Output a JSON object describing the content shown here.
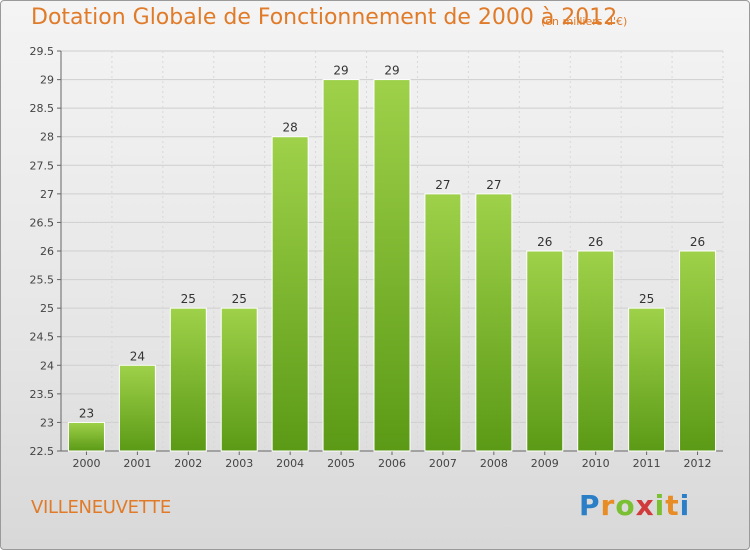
{
  "header": {
    "title": "Dotation Globale de Fonctionnement de 2000 à 2012",
    "subtitle": "(en milliers d'€)"
  },
  "footer": {
    "city": "VILLENEUVETTE",
    "logo_letters": [
      "P",
      "r",
      "o",
      "x",
      "i",
      "t",
      "i"
    ]
  },
  "colors": {
    "accent": "#e07b29",
    "bar_top": "#9fd14a",
    "bar_bottom": "#5b9a16"
  },
  "chart_data": {
    "type": "bar",
    "title": "Dotation Globale de Fonctionnement de 2000 à 2012",
    "subtitle": "(en milliers d'€)",
    "categories": [
      "2000",
      "2001",
      "2002",
      "2003",
      "2004",
      "2005",
      "2006",
      "2007",
      "2008",
      "2009",
      "2010",
      "2011",
      "2012"
    ],
    "values": [
      23,
      24,
      25,
      25,
      28,
      29,
      29,
      27,
      27,
      26,
      26,
      25,
      26
    ],
    "ylim": [
      22.5,
      29.5
    ],
    "yticks": [
      "22.5",
      "23",
      "23.5",
      "24",
      "24.5",
      "25",
      "25.5",
      "26",
      "26.5",
      "27",
      "27.5",
      "28",
      "28.5",
      "29",
      "29.5"
    ],
    "grid": true,
    "legend": "none"
  }
}
